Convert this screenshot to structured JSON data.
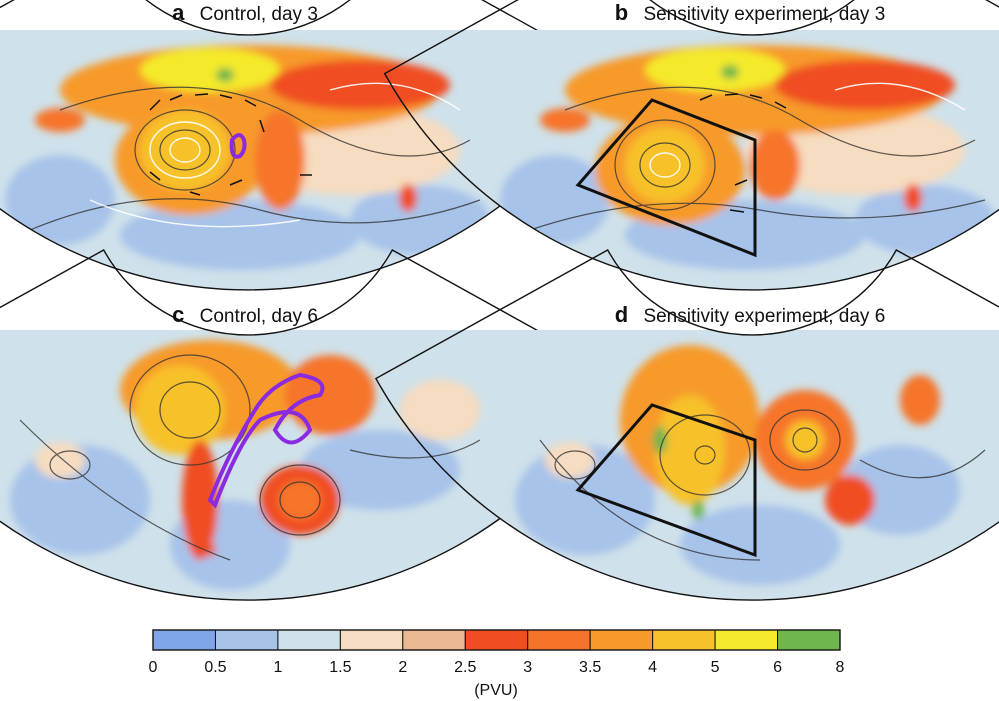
{
  "panels": [
    {
      "letter": "a",
      "title": "Control, day 3"
    },
    {
      "letter": "b",
      "title": "Sensitivity experiment, day 3"
    },
    {
      "letter": "c",
      "title": "Control, day 6"
    },
    {
      "letter": "d",
      "title": "Sensitivity experiment, day 6"
    }
  ],
  "colorbar": {
    "ticks": [
      "0",
      "0.5",
      "1",
      "1.5",
      "2",
      "2.5",
      "3",
      "3.5",
      "4",
      "5",
      "6",
      "8"
    ],
    "colors": [
      "#7fa6e8",
      "#a7c3ea",
      "#cfe1ea",
      "#f6dcc0",
      "#e8b992",
      "#f04d22",
      "#f6742a",
      "#f79a29",
      "#f7c12c",
      "#f4ea2a",
      "#6fb64f"
    ],
    "unit": "(PVU)"
  },
  "colors": {
    "frame": "#111111",
    "outline_highlight": "#8a2be2",
    "map_background": "#cfe1ea"
  }
}
